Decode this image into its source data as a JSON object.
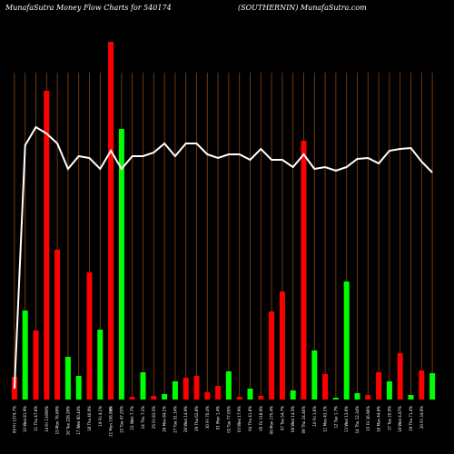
{
  "header": {
    "left": "MunafaSutra  Money Flow  Charts for 540174",
    "right": "(SOUTHERNIN) MunafaSutra.com"
  },
  "chart_data": {
    "type": "bar",
    "title": "MunafaSutra  Money Flow  Charts for 540174",
    "subtitle": "(SOUTHERNIN) MunafaSutra.com",
    "xlabel": "",
    "ylabel": "",
    "grid": true,
    "colors": {
      "up": "#00ff00",
      "down": "#ff0000",
      "line": "#ffffff",
      "grid": "#8B4513",
      "background": "#000000"
    },
    "categories": [
      "09 Fri 1374.7%",
      "10 Wed 81.9%",
      "11 Thu 47.6%",
      "14 Fri 11090%",
      "15 Mon 76.69%",
      "16 Tue 226.26%",
      "17 Wed 80.44%",
      "18 Thu 40.9%",
      "19 Fri 4.1%",
      "21 Mon 106.86%",
      "22 Tue 47.25%",
      "23 Wed 7.7%",
      "24 Thu 7.2%",
      "25 Fri 83.5%",
      "26 Mon 84.1%",
      "27 Tue 51.14%",
      "28 Wed 14.9%",
      "29 Thu 62.8%",
      "30 Fri 70.4%",
      "01 Mon 1.4%",
      "02 Tue 77.05%",
      "03 Wed 17.9%",
      "04 Thu 41.8%",
      "05 Fri 118.9%",
      "06 Mon 170.4%",
      "07 Tue 54.7%",
      "08 Wed 14.5%",
      "09 Thu 24.46%",
      "10 Fri 1.6%",
      "11 Mon 43.1%",
      "12 Tue 1.7%",
      "13 Wed 13.6%",
      "14 Thu 12.34%",
      "15 Fri 36.96%",
      "16 Mon 44.6%",
      "17 Tue 20.9%",
      "18 Wed 4.67%",
      "19 Thu 71.4%",
      "20 Fri 34.9%"
    ],
    "extra_tick": "G",
    "bars": [
      {
        "value": 25,
        "dir": "down"
      },
      {
        "value": 98,
        "dir": "up"
      },
      {
        "value": 76,
        "dir": "down"
      },
      {
        "value": 340,
        "dir": "down"
      },
      {
        "value": 165,
        "dir": "down"
      },
      {
        "value": 47,
        "dir": "up"
      },
      {
        "value": 26,
        "dir": "up"
      },
      {
        "value": 140,
        "dir": "down"
      },
      {
        "value": 77,
        "dir": "up"
      },
      {
        "value": 394,
        "dir": "down"
      },
      {
        "value": 298,
        "dir": "up"
      },
      {
        "value": 3,
        "dir": "down"
      },
      {
        "value": 30,
        "dir": "up"
      },
      {
        "value": 4,
        "dir": "down"
      },
      {
        "value": 6,
        "dir": "up"
      },
      {
        "value": 20,
        "dir": "up"
      },
      {
        "value": 24,
        "dir": "down"
      },
      {
        "value": 26,
        "dir": "down"
      },
      {
        "value": 8,
        "dir": "down"
      },
      {
        "value": 15,
        "dir": "down"
      },
      {
        "value": 31,
        "dir": "up"
      },
      {
        "value": 3,
        "dir": "down"
      },
      {
        "value": 12,
        "dir": "up"
      },
      {
        "value": 4,
        "dir": "down"
      },
      {
        "value": 97,
        "dir": "down"
      },
      {
        "value": 119,
        "dir": "down"
      },
      {
        "value": 10,
        "dir": "up"
      },
      {
        "value": 285,
        "dir": "down"
      },
      {
        "value": 54,
        "dir": "up"
      },
      {
        "value": 28,
        "dir": "down"
      },
      {
        "value": 2,
        "dir": "up"
      },
      {
        "value": 130,
        "dir": "up"
      },
      {
        "value": 7,
        "dir": "up"
      },
      {
        "value": 5,
        "dir": "down"
      },
      {
        "value": 30,
        "dir": "down"
      },
      {
        "value": 20,
        "dir": "up"
      },
      {
        "value": 51,
        "dir": "down"
      },
      {
        "value": 5,
        "dir": "up"
      },
      {
        "value": 32,
        "dir": "down"
      },
      {
        "value": 29,
        "dir": "up"
      }
    ],
    "line": [
      12,
      280,
      300,
      293,
      282,
      254,
      268,
      266,
      254,
      274,
      254,
      268,
      268,
      272,
      282,
      268,
      282,
      282,
      270,
      266,
      270,
      270,
      264,
      276,
      264,
      264,
      256,
      270,
      254,
      256,
      252,
      256,
      265,
      266,
      260,
      274,
      276,
      277,
      262,
      250
    ],
    "ylim": [
      0,
      400
    ]
  }
}
